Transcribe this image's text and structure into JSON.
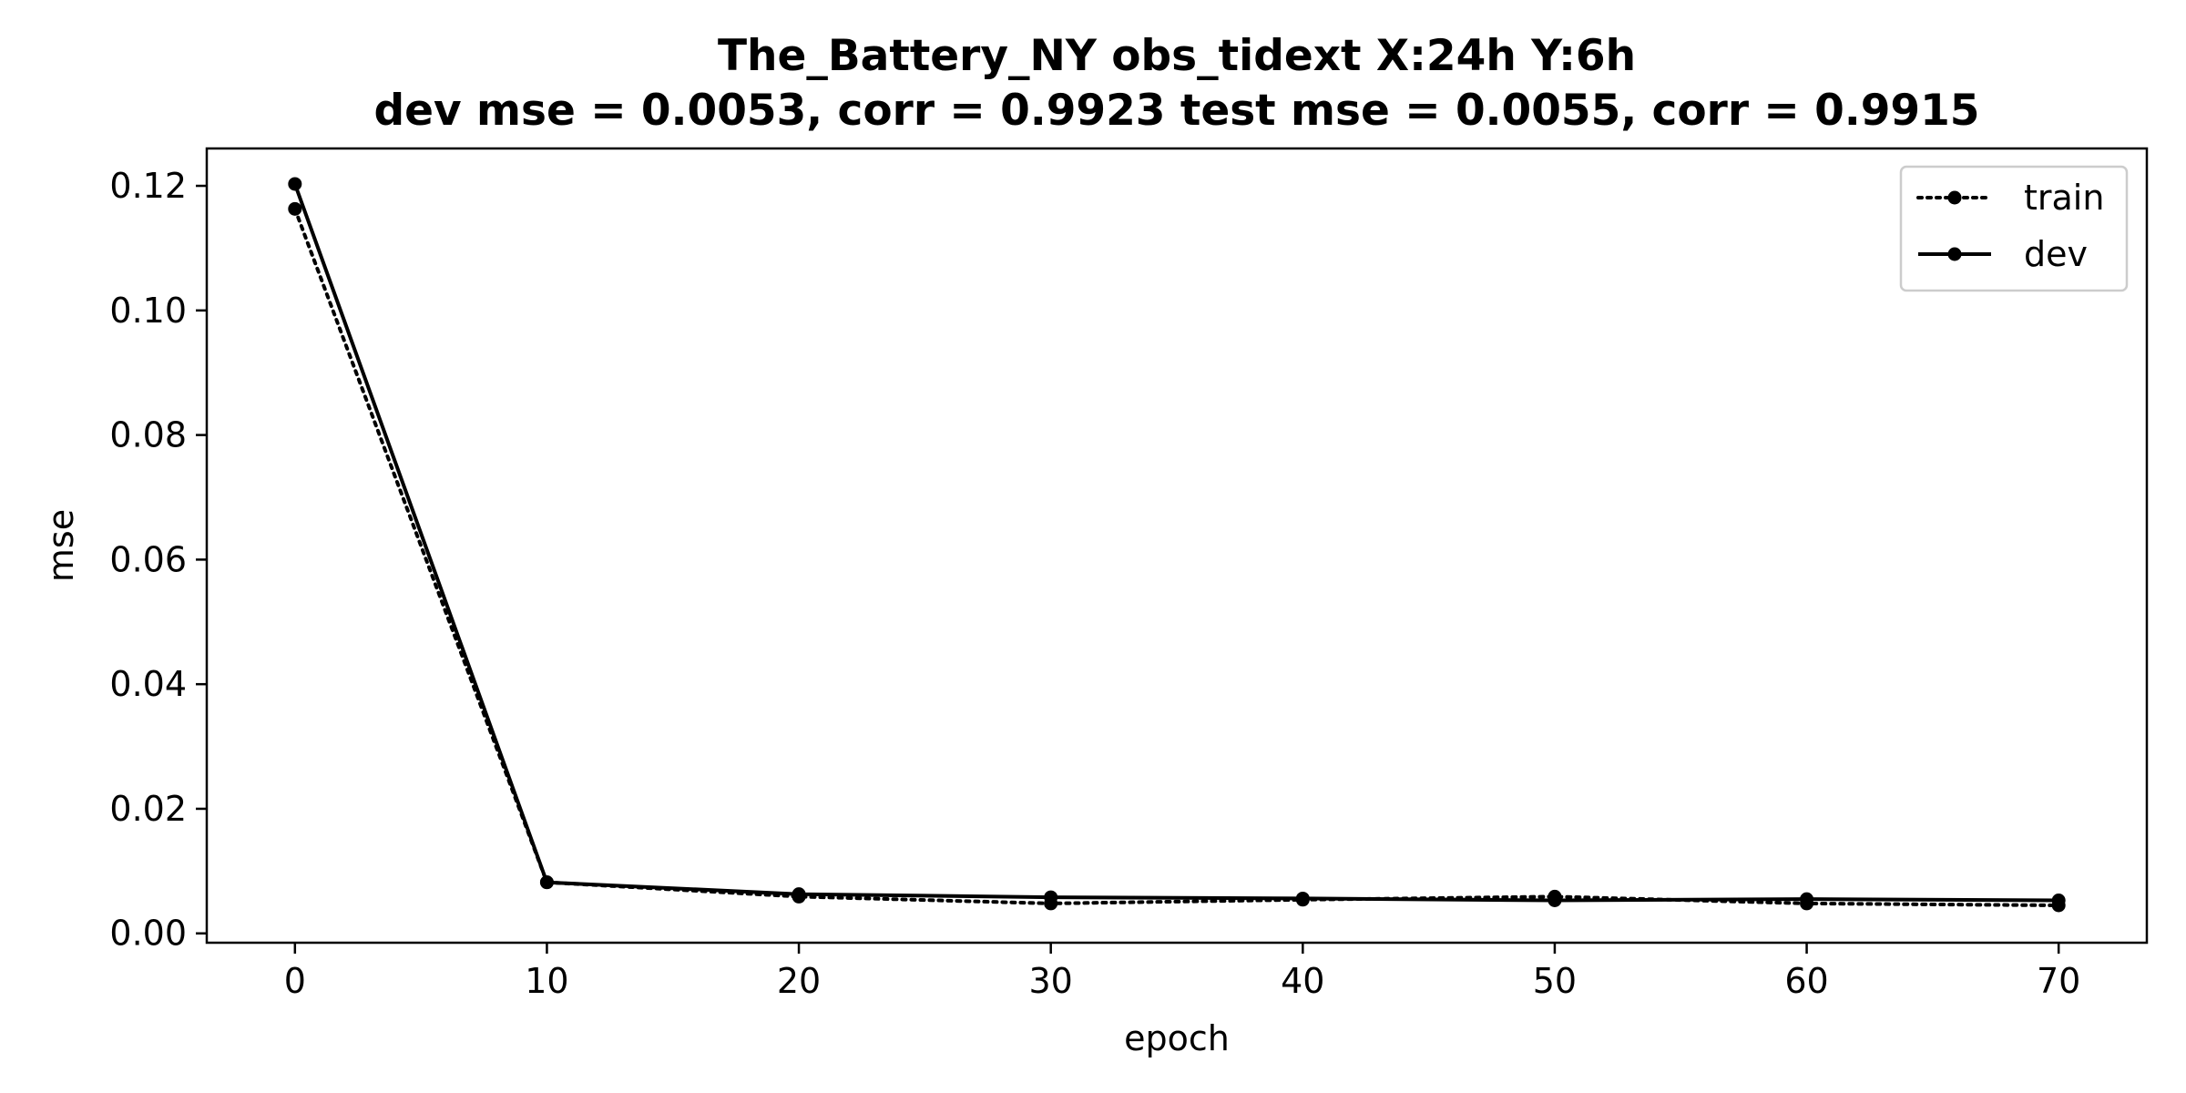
{
  "chart_data": {
    "type": "line",
    "title": "The_Battery_NY   obs_tidext   X:24h   Y:6h",
    "subtitle": "dev mse = 0.0053, corr = 0.9923   test mse = 0.0055, corr = 0.9915",
    "xlabel": "epoch",
    "ylabel": "mse",
    "xlim": [
      -3.5,
      73.5
    ],
    "ylim": [
      -0.0015,
      0.126
    ],
    "x_ticks": [
      0,
      10,
      20,
      30,
      40,
      50,
      60,
      70
    ],
    "x_tick_labels": [
      "0",
      "10",
      "20",
      "30",
      "40",
      "50",
      "60",
      "70"
    ],
    "y_ticks": [
      0.0,
      0.02,
      0.04,
      0.06,
      0.08,
      0.1,
      0.12
    ],
    "y_tick_labels": [
      "0.00",
      "0.02",
      "0.04",
      "0.06",
      "0.08",
      "0.10",
      "0.12"
    ],
    "grid": false,
    "legend_position": "upper right",
    "x": [
      0,
      10,
      20,
      30,
      40,
      50,
      60,
      70
    ],
    "series": [
      {
        "name": "train",
        "line_style": "dotted",
        "marker": "circle",
        "color": "#000000",
        "values": [
          0.1163,
          0.0082,
          0.0059,
          0.0048,
          0.0054,
          0.0059,
          0.0048,
          0.0045
        ]
      },
      {
        "name": "dev",
        "line_style": "solid",
        "marker": "circle",
        "color": "#000000",
        "values": [
          0.1203,
          0.0082,
          0.0063,
          0.0058,
          0.0056,
          0.0053,
          0.0055,
          0.0053
        ]
      }
    ]
  }
}
